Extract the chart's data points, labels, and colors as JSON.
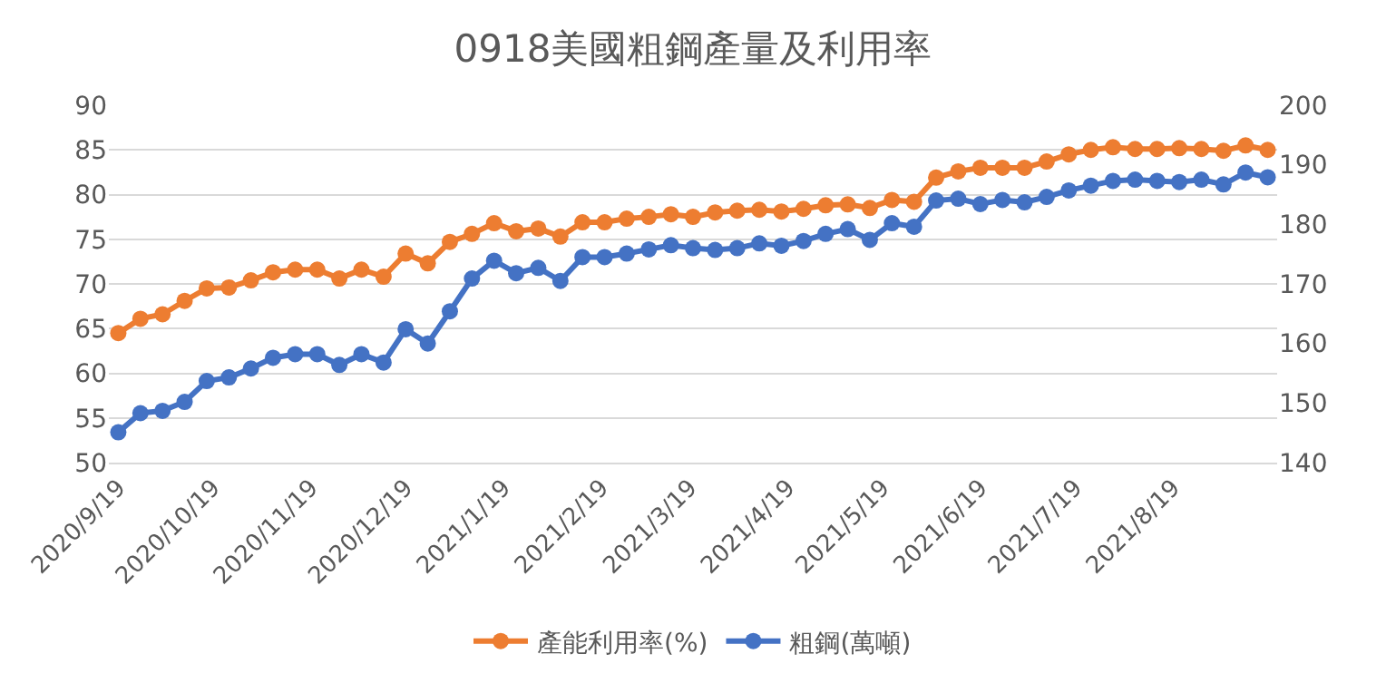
{
  "chart_data": {
    "type": "line",
    "title": "0918美國粗鋼產量及利用率",
    "x": [
      "2020-09-19",
      "2020-09-26",
      "2020-10-03",
      "2020-10-10",
      "2020-10-17",
      "2020-10-24",
      "2020-10-31",
      "2020-11-07",
      "2020-11-14",
      "2020-11-21",
      "2020-11-28",
      "2020-12-05",
      "2020-12-12",
      "2020-12-19",
      "2020-12-26",
      "2021-01-02",
      "2021-01-09",
      "2021-01-16",
      "2021-01-23",
      "2021-01-30",
      "2021-02-06",
      "2021-02-13",
      "2021-02-20",
      "2021-02-27",
      "2021-03-06",
      "2021-03-13",
      "2021-03-20",
      "2021-03-27",
      "2021-04-03",
      "2021-04-10",
      "2021-04-17",
      "2021-04-24",
      "2021-05-01",
      "2021-05-08",
      "2021-05-15",
      "2021-05-22",
      "2021-05-29",
      "2021-06-05",
      "2021-06-12",
      "2021-06-19",
      "2021-06-26",
      "2021-07-03",
      "2021-07-10",
      "2021-07-17",
      "2021-07-24",
      "2021-07-31",
      "2021-08-07",
      "2021-08-14",
      "2021-08-21",
      "2021-08-28",
      "2021-09-04",
      "2021-09-11",
      "2021-09-18"
    ],
    "series": [
      {
        "name": "產能利用率(%)",
        "color": "#ed7d31",
        "values": [
          64.5,
          66.1,
          66.6,
          68.1,
          69.5,
          69.6,
          70.4,
          71.3,
          71.6,
          71.6,
          70.6,
          71.6,
          70.8,
          73.4,
          72.3,
          74.7,
          75.6,
          76.8,
          75.9,
          76.2,
          75.3,
          76.9,
          76.9,
          77.3,
          77.5,
          77.8,
          77.5,
          78.0,
          78.2,
          78.3,
          78.1,
          78.4,
          78.8,
          78.9,
          78.5,
          79.4,
          79.2,
          81.9,
          82.6,
          83.0,
          83.0,
          83.0,
          83.7,
          84.5,
          85.0,
          85.3,
          85.1,
          85.1,
          85.2,
          85.1,
          84.9,
          85.5,
          85.0
        ]
      },
      {
        "name": "粗鋼(萬噸)",
        "color": "#4472c4",
        "axis": "y2",
        "values": [
          145.1,
          148.3,
          148.7,
          150.2,
          153.7,
          154.3,
          155.8,
          157.6,
          158.2,
          158.2,
          156.4,
          158.2,
          156.8,
          162.4,
          160.0,
          165.4,
          170.9,
          173.9,
          171.8,
          172.7,
          170.5,
          174.5,
          174.5,
          175.1,
          175.8,
          176.5,
          176.0,
          175.7,
          176.0,
          176.8,
          176.4,
          177.2,
          178.4,
          179.2,
          177.4,
          180.2,
          179.6,
          184.0,
          184.3,
          183.4,
          184.1,
          183.7,
          184.6,
          185.7,
          186.5,
          187.3,
          187.5,
          187.3,
          187.1,
          187.5,
          186.7,
          188.7,
          187.9
        ]
      }
    ],
    "xlim": [
      "2020-09-16",
      "2021-09-21"
    ],
    "xticks": [
      {
        "value": "2020-09-19",
        "label": "2020/9/19"
      },
      {
        "value": "2020-10-19",
        "label": "2020/10/19"
      },
      {
        "value": "2020-11-19",
        "label": "2020/11/19"
      },
      {
        "value": "2020-12-19",
        "label": "2020/12/19"
      },
      {
        "value": "2021-01-19",
        "label": "2021/1/19"
      },
      {
        "value": "2021-02-19",
        "label": "2021/2/19"
      },
      {
        "value": "2021-03-19",
        "label": "2021/3/19"
      },
      {
        "value": "2021-04-19",
        "label": "2021/4/19"
      },
      {
        "value": "2021-05-19",
        "label": "2021/5/19"
      },
      {
        "value": "2021-06-19",
        "label": "2021/6/19"
      },
      {
        "value": "2021-07-19",
        "label": "2021/7/19"
      },
      {
        "value": "2021-08-19",
        "label": "2021/8/19"
      }
    ],
    "ylim": [
      50,
      90
    ],
    "yticks": [
      50,
      55,
      60,
      65,
      70,
      75,
      80,
      85,
      90
    ],
    "y2lim": [
      140,
      200
    ],
    "y2ticks": [
      140,
      150,
      160,
      170,
      180,
      190,
      200
    ],
    "grid": "y",
    "legend": "bottom",
    "marker": "circle",
    "line_style": "solid"
  }
}
